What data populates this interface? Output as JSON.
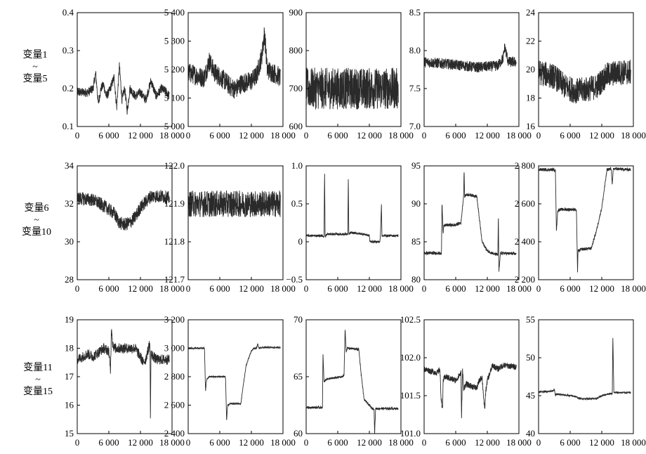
{
  "row_labels": [
    {
      "top": "变量1",
      "mid": "~",
      "bottom": "变量5"
    },
    {
      "top": "变量6",
      "mid": "~",
      "bottom": "变量10"
    },
    {
      "top": "变量11",
      "mid": "~",
      "bottom": "变量15"
    }
  ],
  "chart_data": [
    {
      "type": "line",
      "xlim": [
        0,
        18000
      ],
      "xticks": [
        "0",
        "6 000",
        "12 000",
        "18 000"
      ],
      "ylim": [
        0.1,
        0.4
      ],
      "yticks": [
        "0.1",
        "0.2",
        "0.3",
        "0.4"
      ],
      "series": [
        {
          "x": [
            0,
            2000,
            3000,
            3500,
            4000,
            4500,
            5000,
            5500,
            6000,
            7000,
            7500,
            8000,
            8500,
            9000,
            9500,
            10000,
            11000,
            12000,
            13000,
            14000,
            15000,
            16000,
            17000,
            17500
          ],
          "y": [
            0.19,
            0.19,
            0.2,
            0.24,
            0.16,
            0.2,
            0.21,
            0.18,
            0.19,
            0.23,
            0.15,
            0.26,
            0.17,
            0.2,
            0.14,
            0.2,
            0.18,
            0.19,
            0.17,
            0.22,
            0.18,
            0.2,
            0.19,
            0.18
          ],
          "noise": 0.012
        }
      ]
    },
    {
      "type": "line",
      "xlim": [
        0,
        18000
      ],
      "xticks": [
        "0",
        "6 000",
        "12 000",
        "18 000"
      ],
      "ylim": [
        5000,
        5400
      ],
      "yticks": [
        "5 000",
        "5 100",
        "5 200",
        "5 300",
        "5 400"
      ],
      "series": [
        {
          "x": [
            0,
            3000,
            4000,
            5000,
            7000,
            8000,
            9000,
            10000,
            12000,
            13000,
            14000,
            14500,
            15000,
            17000,
            17500
          ],
          "y": [
            5190,
            5170,
            5230,
            5190,
            5160,
            5140,
            5130,
            5150,
            5160,
            5180,
            5250,
            5330,
            5200,
            5180,
            5170
          ],
          "noise": 35
        }
      ]
    },
    {
      "type": "line",
      "xlim": [
        0,
        18000
      ],
      "xticks": [
        "0",
        "6 000",
        "12 000",
        "18 000"
      ],
      "ylim": [
        600,
        900
      ],
      "yticks": [
        "600",
        "700",
        "800",
        "900"
      ],
      "series": [
        {
          "x": [
            0,
            17500
          ],
          "y": [
            700,
            700
          ],
          "noise": 55
        }
      ]
    },
    {
      "type": "line",
      "xlim": [
        0,
        18000
      ],
      "xticks": [
        "0",
        "6 000",
        "12 000",
        "18 000"
      ],
      "ylim": [
        7.0,
        8.5
      ],
      "yticks": [
        "7.0",
        "7.5",
        "8.0",
        "8.5"
      ],
      "series": [
        {
          "x": [
            0,
            5000,
            10000,
            14000,
            15000,
            15300,
            16000,
            17500
          ],
          "y": [
            7.85,
            7.82,
            7.78,
            7.8,
            7.9,
            8.05,
            7.85,
            7.85
          ],
          "noise": 0.07
        }
      ]
    },
    {
      "type": "line",
      "xlim": [
        0,
        18000
      ],
      "xticks": [
        "0",
        "6 000",
        "12 000",
        "18 000"
      ],
      "ylim": [
        16,
        24
      ],
      "yticks": [
        "16",
        "18",
        "20",
        "22",
        "24"
      ],
      "series": [
        {
          "x": [
            0,
            3000,
            5000,
            7000,
            9000,
            11000,
            12000,
            13000,
            15000,
            17500
          ],
          "y": [
            19.8,
            19.5,
            18.8,
            18.5,
            18.6,
            18.8,
            19.2,
            19.6,
            19.8,
            19.8
          ],
          "noise": 0.9
        }
      ]
    },
    {
      "type": "line",
      "xlim": [
        0,
        18000
      ],
      "xticks": [
        "0",
        "6 000",
        "12 000",
        "18 000"
      ],
      "ylim": [
        28,
        34
      ],
      "yticks": [
        "28",
        "30",
        "32",
        "34"
      ],
      "series": [
        {
          "x": [
            0,
            3000,
            5000,
            7000,
            8000,
            9000,
            10000,
            11000,
            12000,
            14000,
            16000,
            17500
          ],
          "y": [
            32.3,
            32.2,
            31.9,
            31.5,
            31.0,
            30.9,
            31.0,
            31.3,
            31.8,
            32.4,
            32.4,
            32.3
          ],
          "noise": 0.35
        }
      ]
    },
    {
      "type": "line",
      "xlim": [
        0,
        18000
      ],
      "xticks": [
        "0",
        "6 000",
        "12 000",
        "18 000"
      ],
      "ylim": [
        121.7,
        122.0
      ],
      "yticks": [
        "121.7",
        "121.8",
        "121.9",
        "122.0"
      ],
      "series": [
        {
          "x": [
            0,
            6000,
            12000,
            17500
          ],
          "y": [
            121.9,
            121.9,
            121.9,
            121.9
          ],
          "noise": 0.035
        }
      ]
    },
    {
      "type": "line",
      "xlim": [
        0,
        18000
      ],
      "xticks": [
        "0",
        "6 000",
        "12 000",
        "18 000"
      ],
      "ylim": [
        -0.5,
        1.0
      ],
      "yticks": [
        "−0.5",
        "0",
        "0.5",
        "1.0"
      ],
      "series": [
        {
          "x": [
            0,
            3000,
            3400,
            3500,
            3600,
            4000,
            6000,
            7500,
            7900,
            8000,
            8100,
            8500,
            11000,
            12000,
            12100,
            14000,
            14100,
            14300,
            14400,
            14500,
            15000,
            17500
          ],
          "y": [
            0.08,
            0.08,
            0.07,
            0.9,
            0.07,
            0.1,
            0.1,
            0.1,
            0.1,
            0.85,
            0.1,
            0.12,
            0.1,
            0.08,
            0,
            0,
            0.08,
            0.5,
            0.08,
            0.08,
            0.08,
            0.08
          ],
          "noise": 0.015
        }
      ]
    },
    {
      "type": "line",
      "xlim": [
        0,
        18000
      ],
      "xticks": [
        "0",
        "6 000",
        "12 000",
        "18 000"
      ],
      "ylim": [
        80,
        95
      ],
      "yticks": [
        "80",
        "85",
        "90",
        "95"
      ],
      "series": [
        {
          "x": [
            0,
            3000,
            3300,
            3400,
            3600,
            3700,
            4000,
            6000,
            6200,
            7000,
            7500,
            7600,
            7700,
            8000,
            8500,
            10000,
            10500,
            11000,
            12000,
            13000,
            13200,
            14000,
            14100,
            14200,
            14500,
            15000,
            17500
          ],
          "y": [
            83.5,
            83.5,
            83.3,
            90.5,
            86,
            87,
            87.2,
            87.2,
            87.3,
            87.5,
            91,
            94.5,
            91,
            91.2,
            91.2,
            91,
            88,
            85,
            83.8,
            83.5,
            83.4,
            83.3,
            88.5,
            81,
            83.5,
            83.5,
            83.4
          ],
          "noise": 0.2
        }
      ]
    },
    {
      "type": "line",
      "xlim": [
        0,
        18000
      ],
      "xticks": [
        "0",
        "6 000",
        "12 000",
        "18 000"
      ],
      "ylim": [
        2200,
        2800
      ],
      "yticks": [
        "2 200",
        "2 400",
        "2 600",
        "2 800"
      ],
      "series": [
        {
          "x": [
            0,
            3000,
            3200,
            3400,
            3600,
            4000,
            7000,
            7200,
            7400,
            7500,
            7600,
            8000,
            10000,
            11000,
            12000,
            12500,
            13000,
            13800,
            14000,
            14200,
            17500
          ],
          "y": [
            2780,
            2780,
            2775,
            2450,
            2560,
            2570,
            2570,
            2560,
            2240,
            2360,
            2350,
            2360,
            2365,
            2460,
            2580,
            2680,
            2780,
            2785,
            2700,
            2785,
            2780
          ],
          "noise": 8
        }
      ]
    },
    {
      "type": "line",
      "xlim": [
        0,
        18000
      ],
      "xticks": [
        "0",
        "6 000",
        "12 000",
        "18 000"
      ],
      "ylim": [
        15,
        19
      ],
      "yticks": [
        "15",
        "16",
        "17",
        "18",
        "19"
      ],
      "series": [
        {
          "x": [
            0,
            2000,
            3000,
            5000,
            6000,
            6300,
            6500,
            6700,
            7000,
            9000,
            11000,
            12000,
            12500,
            13000,
            13800,
            13900,
            14000,
            14500,
            15000,
            17500
          ],
          "y": [
            17.6,
            17.8,
            17.7,
            18.0,
            17.9,
            17.2,
            18.8,
            18.2,
            18.0,
            18.0,
            18.0,
            17.7,
            17.5,
            17.6,
            18.2,
            15.5,
            17.8,
            17.7,
            17.6,
            17.6
          ],
          "noise": 0.18
        }
      ]
    },
    {
      "type": "line",
      "xlim": [
        0,
        18000
      ],
      "xticks": [
        "0",
        "6 000",
        "12 000",
        "18 000"
      ],
      "ylim": [
        2400,
        3200
      ],
      "yticks": [
        "2 400",
        "2 600",
        "2 800",
        "3 000",
        "3 200"
      ],
      "series": [
        {
          "x": [
            0,
            3000,
            3100,
            3300,
            3500,
            4000,
            7000,
            7100,
            7300,
            7500,
            7800,
            8000,
            10000,
            10500,
            11000,
            12000,
            12500,
            13000,
            13200,
            13400,
            14000,
            17500
          ],
          "y": [
            3000,
            3000,
            2995,
            2700,
            2780,
            2800,
            2800,
            2790,
            2490,
            2600,
            2605,
            2610,
            2610,
            2750,
            2880,
            2980,
            3000,
            3000,
            3030,
            3000,
            3005,
            3005
          ],
          "noise": 6
        }
      ]
    },
    {
      "type": "line",
      "xlim": [
        0,
        18000
      ],
      "xticks": [
        "0",
        "6 000",
        "12 000",
        "18 000"
      ],
      "ylim": [
        60,
        70
      ],
      "yticks": [
        "60",
        "65",
        "70"
      ],
      "series": [
        {
          "x": [
            0,
            3000,
            3100,
            3200,
            3400,
            3600,
            4000,
            7000,
            7200,
            7400,
            7600,
            7800,
            8000,
            10000,
            10500,
            11000,
            12000,
            12500,
            12900,
            13000,
            13200,
            14000,
            17500
          ],
          "y": [
            62.3,
            62.3,
            62.2,
            67,
            64.5,
            64.7,
            64.8,
            65,
            65.2,
            69.2,
            67.2,
            67.5,
            67.5,
            67.4,
            65,
            63,
            62.5,
            62.2,
            62.2,
            60,
            62.2,
            62.2,
            62.2
          ],
          "noise": 0.1
        }
      ]
    },
    {
      "type": "line",
      "xlim": [
        0,
        18000
      ],
      "xticks": [
        "0",
        "6 000",
        "12 000",
        "18 000"
      ],
      "ylim": [
        101.0,
        102.5
      ],
      "yticks": [
        "101.0",
        "101.5",
        "102.0",
        "102.5"
      ],
      "series": [
        {
          "x": [
            0,
            2500,
            3000,
            3200,
            3500,
            3600,
            4000,
            6000,
            7000,
            7100,
            7300,
            7500,
            8000,
            10000,
            10500,
            11000,
            11500,
            11700,
            12000,
            13000,
            14000,
            15000,
            17500
          ],
          "y": [
            101.85,
            101.8,
            101.85,
            101.5,
            101.3,
            101.7,
            101.75,
            101.7,
            101.8,
            101.2,
            101.85,
            101.6,
            101.65,
            101.6,
            101.7,
            101.75,
            101.3,
            101.55,
            101.7,
            101.9,
            101.85,
            101.9,
            101.88
          ],
          "noise": 0.04
        }
      ]
    },
    {
      "type": "line",
      "xlim": [
        0,
        18000
      ],
      "xticks": [
        "0",
        "6 000",
        "12 000",
        "18 000"
      ],
      "ylim": [
        40,
        55
      ],
      "yticks": [
        "40",
        "45",
        "50",
        "55"
      ],
      "series": [
        {
          "x": [
            0,
            2500,
            3000,
            3200,
            3400,
            6000,
            7000,
            7500,
            8000,
            11000,
            12000,
            13000,
            14000,
            14100,
            14300,
            14500,
            17500
          ],
          "y": [
            45.5,
            45.6,
            45.8,
            45,
            45.2,
            45,
            44.9,
            44.7,
            44.6,
            44.6,
            45,
            45.2,
            45.3,
            53,
            45.4,
            45.4,
            45.4
          ],
          "noise": 0.12
        }
      ]
    }
  ]
}
